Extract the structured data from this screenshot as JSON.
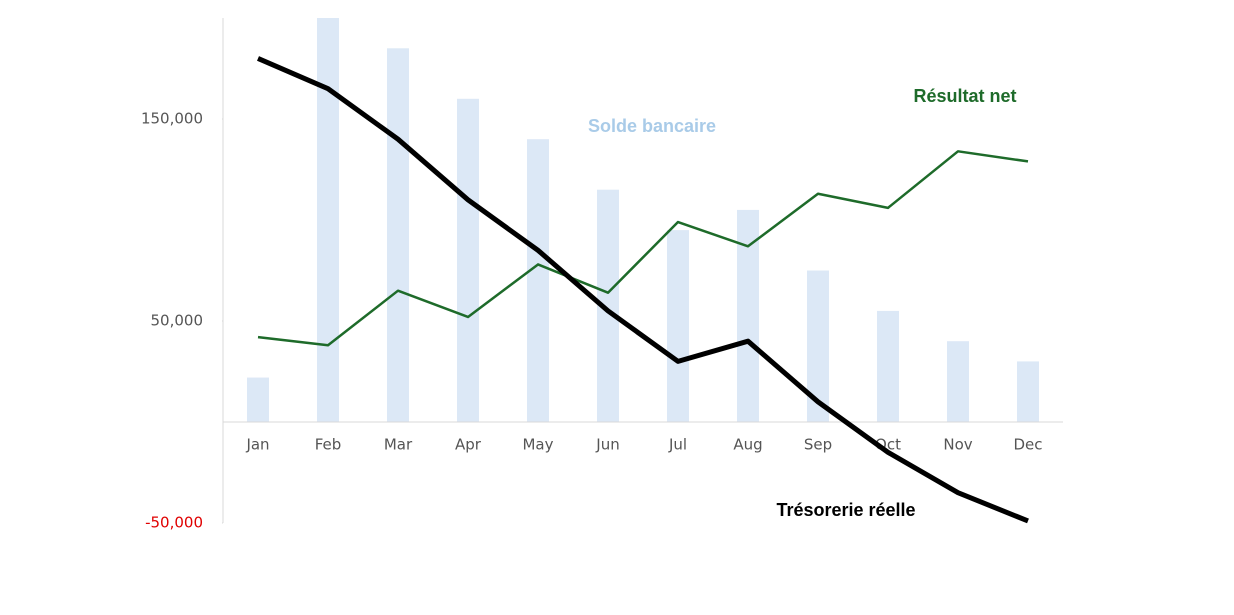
{
  "chart_data": {
    "type": "combo",
    "categories": [
      "Jan",
      "Feb",
      "Mar",
      "Apr",
      "May",
      "Jun",
      "Jul",
      "Aug",
      "Sep",
      "Oct",
      "Nov",
      "Dec"
    ],
    "series": [
      {
        "name": "Solde bancaire",
        "type": "bar",
        "color": "#dce8f6",
        "label_color": "#a9cbe8",
        "values": [
          22000,
          200000,
          185000,
          160000,
          140000,
          115000,
          95000,
          105000,
          75000,
          55000,
          40000,
          30000
        ]
      },
      {
        "name": "Résultat net",
        "type": "line",
        "color": "#1e6b2a",
        "label_color": "#1e6b2a",
        "line_width": 2.5,
        "values": [
          42000,
          38000,
          65000,
          52000,
          78000,
          64000,
          99000,
          87000,
          113000,
          106000,
          134000,
          129000
        ]
      },
      {
        "name": "Trésorerie réelle",
        "type": "line",
        "color": "#000000",
        "label_color": "#000000",
        "line_width": 5,
        "values": [
          180000,
          165000,
          140000,
          110000,
          85000,
          55000,
          30000,
          40000,
          10000,
          -15000,
          -35000,
          -49000
        ]
      }
    ],
    "ylim": [
      -50000,
      200000
    ],
    "yticks": [
      {
        "value": -50000,
        "label": "-50,000"
      },
      {
        "value": 50000,
        "label": "50,000"
      },
      {
        "value": 150000,
        "label": "150,000"
      }
    ],
    "negative_tick_color": "#e00000",
    "grid": false
  }
}
